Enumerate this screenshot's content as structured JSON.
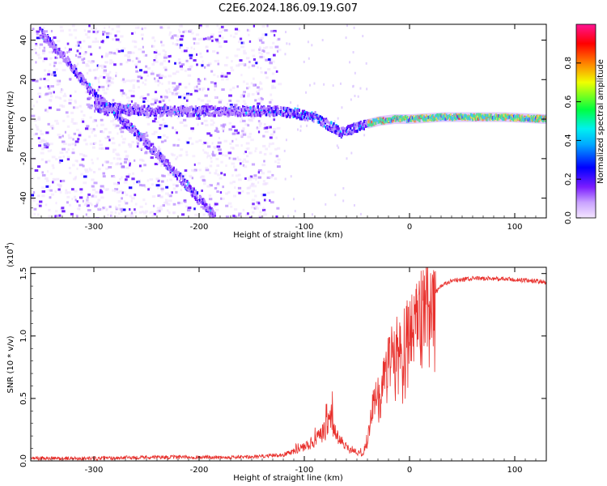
{
  "figure": {
    "title": "C2E6.2024.186.09.19.G07"
  },
  "colors": {
    "snr_line": "#e8302c",
    "spectrum_noise": "#9b6dff",
    "spectrum_track": "#5a1aff"
  },
  "chart_data": [
    {
      "type": "heatmap",
      "xlabel": "Height of straight line (km)",
      "ylabel": "Frequency (Hz)",
      "xlim": [
        -360,
        130
      ],
      "ylim": [
        -50,
        48
      ],
      "xticks": [
        -300,
        -200,
        -100,
        0,
        100
      ],
      "yticks": [
        -40,
        -20,
        0,
        20,
        40
      ],
      "grid": false,
      "colorbar": {
        "label": "Normalized spectral amplitude",
        "range": [
          0,
          1
        ],
        "ticks": [
          "0.0",
          "0.2",
          "0.4",
          "0.6",
          "0.8"
        ],
        "colormap": [
          "#f4e6ff",
          "#7a1cff",
          "#0000ff",
          "#00e0ff",
          "#00ff40",
          "#f0ff00",
          "#ff8000",
          "#ff0000",
          "#ff1493"
        ]
      },
      "tracks": [
        {
          "x": [
            -352,
            -330,
            -300,
            -270,
            -240,
            -215,
            -195,
            -185
          ],
          "y": [
            44,
            32,
            12,
            -2,
            -18,
            -32,
            -44,
            -50
          ]
        },
        {
          "x": [
            -300,
            -270,
            -240,
            -210,
            -180,
            -150,
            -130,
            -110,
            -90,
            -75,
            -65,
            -55,
            -45,
            -30,
            -15,
            0,
            30,
            60,
            90,
            130
          ],
          "y": [
            6,
            5,
            4,
            4,
            4,
            4,
            4,
            3,
            1,
            -4,
            -7,
            -5,
            -3,
            -1,
            0,
            0,
            1,
            1,
            1,
            0
          ]
        }
      ]
    },
    {
      "type": "line",
      "xlabel": "Height of straight line (km)",
      "ylabel": "SNR (10 * v/v)",
      "y_multiplier": "(x10",
      "y_multiplier_exp": "4",
      "y_multiplier_close": ")",
      "xlim": [
        -360,
        130
      ],
      "ylim": [
        0.0,
        1.55
      ],
      "xticks": [
        -300,
        -200,
        -100,
        0,
        100
      ],
      "yticks": [
        "0.0",
        "0.5",
        "1.0",
        "1.5"
      ],
      "grid": false,
      "series": [
        {
          "x": [
            -360,
            -300,
            -250,
            -200,
            -150,
            -120,
            -110,
            -100,
            -90,
            -80,
            -75,
            -70,
            -65,
            -60,
            -55,
            -50,
            -45,
            -40,
            -35,
            -30,
            -25,
            -20,
            -15,
            -10,
            -5,
            0,
            5,
            10,
            20,
            30,
            40,
            60,
            80,
            100,
            120,
            130
          ],
          "y": [
            0.02,
            0.02,
            0.03,
            0.03,
            0.03,
            0.05,
            0.08,
            0.11,
            0.16,
            0.24,
            0.34,
            0.22,
            0.14,
            0.11,
            0.08,
            0.07,
            0.05,
            0.15,
            0.45,
            0.55,
            0.7,
            0.8,
            0.88,
            0.95,
            1.0,
            1.05,
            1.1,
            1.18,
            1.3,
            1.4,
            1.44,
            1.46,
            1.46,
            1.45,
            1.44,
            1.43
          ]
        }
      ]
    }
  ]
}
